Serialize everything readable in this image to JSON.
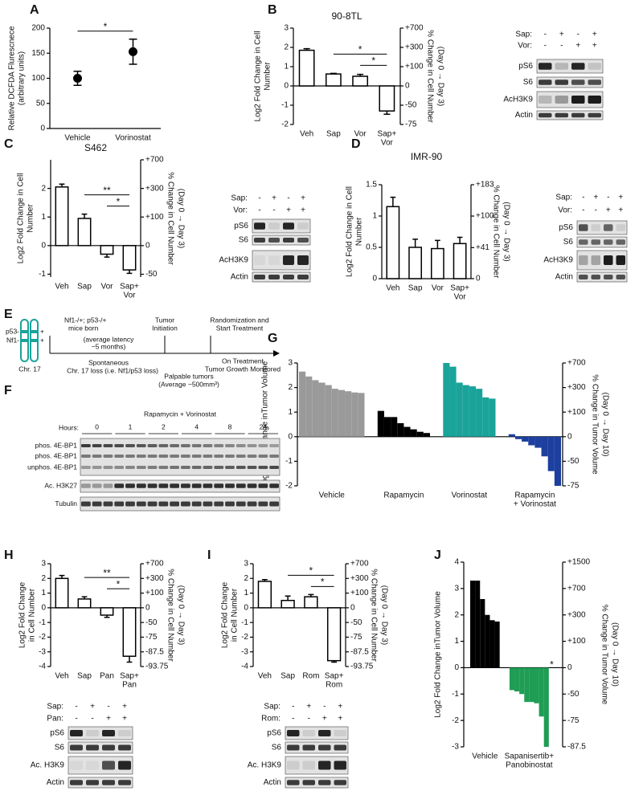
{
  "panel_labels": [
    "A",
    "B",
    "C",
    "D",
    "E",
    "F",
    "G",
    "H",
    "I",
    "J"
  ],
  "chart_data": [
    {
      "type": "point",
      "ylabel": [
        "Relative DCFDA Flurescnece",
        "(arbitrary units)"
      ],
      "categories": [
        [
          "Vehicle"
        ],
        [
          "Vorinostat"
        ]
      ],
      "values": [
        100,
        153
      ],
      "errors": [
        14,
        25
      ],
      "color": "#000000",
      "ylim": [
        0,
        200
      ],
      "yticks": [
        0,
        50,
        100,
        150,
        200
      ],
      "significance": [
        {
          "label": "*",
          "pair": [
            0,
            1
          ]
        }
      ]
    },
    {
      "type": "bar",
      "title": "90-8TL",
      "ylabel": [
        "Log2 Fold Change in Cell",
        "Number"
      ],
      "y2label": [
        "% Change in Cell Number",
        "(Day 0 → Day 3)"
      ],
      "categories": [
        [
          "Veh"
        ],
        [
          "Sap"
        ],
        [
          "Vor"
        ],
        [
          "Sap+",
          "Vor"
        ]
      ],
      "values": [
        1.85,
        0.62,
        0.5,
        -1.3
      ],
      "errors": [
        0.08,
        0.03,
        0.1,
        0.17
      ],
      "color": "#ffffff",
      "ylim": [
        -2,
        3
      ],
      "yticks": [
        -2,
        -1,
        0,
        1,
        2,
        3
      ],
      "y2lim": [
        -75,
        700
      ],
      "y2ticks": [
        {
          "value": 700,
          "label": "+700"
        },
        {
          "value": 300,
          "label": "+300"
        },
        {
          "value": 100,
          "label": "+100"
        },
        0,
        -50,
        -75
      ],
      "y2scale": "log2-fold",
      "significance": [
        {
          "label": "*",
          "pair": [
            1,
            3
          ]
        },
        {
          "label": "*",
          "pair": [
            2,
            3
          ]
        }
      ]
    },
    {
      "type": "bar",
      "title": "S462",
      "ylabel": [
        "Log2 Fold Change in Cell",
        "Number"
      ],
      "y2label": [
        "% Change in Cell Number",
        "(Day 0 → Day 3)"
      ],
      "categories": [
        [
          "Veh"
        ],
        [
          "Sap"
        ],
        [
          "Vor"
        ],
        [
          "Sap+",
          "Vor"
        ]
      ],
      "values": [
        2.05,
        0.95,
        -0.3,
        -0.85
      ],
      "errors": [
        0.1,
        0.15,
        0.1,
        0.12
      ],
      "color": "#ffffff",
      "ylim": [
        -1.1,
        3
      ],
      "yticks": [
        -1,
        0,
        1,
        2
      ],
      "y2lim": [
        -53.3,
        700
      ],
      "y2ticks": [
        {
          "value": 700,
          "label": "+700"
        },
        {
          "value": 300,
          "label": "+300"
        },
        {
          "value": 100,
          "label": "+100"
        },
        0,
        -50
      ],
      "y2scale": "log2-fold",
      "significance": [
        {
          "label": "**",
          "pair": [
            1,
            3
          ]
        },
        {
          "label": "*",
          "pair": [
            2,
            3
          ]
        }
      ]
    },
    {
      "type": "bar",
      "title": "IMR-90",
      "ylabel": [
        "Log2 Fold Change in Cell",
        "Number"
      ],
      "y2label": [
        "% Change in Cell Number",
        "(Day 0 → Day 3)"
      ],
      "categories": [
        [
          "Veh"
        ],
        [
          "Sap"
        ],
        [
          "Vor"
        ],
        [
          "Sap+",
          "Vor"
        ]
      ],
      "values": [
        1.15,
        0.5,
        0.48,
        0.56
      ],
      "errors": [
        0.15,
        0.13,
        0.13,
        0.1
      ],
      "color": "#ffffff",
      "ylim": [
        0,
        1.5
      ],
      "yticks": [
        0,
        0.5,
        1,
        1.5
      ],
      "y2lim": [
        0,
        183
      ],
      "y2ticks": [
        {
          "value": 183,
          "label": "+183"
        },
        {
          "value": 100,
          "label": "+100"
        },
        {
          "value": 41,
          "label": "+41"
        },
        0
      ],
      "y2scale": "log2-fold"
    },
    {
      "type": "bar",
      "ylabel": [
        "Log2 Fold Change inTumor Volume"
      ],
      "y2label": [
        "% Change in Tumor Volume",
        "(Day 0 → Day 10)"
      ],
      "series": [
        {
          "name": [
            "Vehicle"
          ],
          "color": "#9a9a9a",
          "values": [
            2.65,
            2.45,
            2.3,
            2.2,
            2.1,
            1.95,
            1.9,
            1.85,
            1.8,
            1.78
          ]
        },
        {
          "name": [
            "Rapamycin"
          ],
          "color": "#000000",
          "values": [
            1.05,
            0.8,
            0.8,
            0.55,
            0.4,
            0.3,
            0.2,
            0.15
          ]
        },
        {
          "name": [
            "Vorinostat"
          ],
          "color": "#1aa39a",
          "values": [
            3.0,
            2.85,
            2.2,
            2.1,
            2.05,
            1.95,
            1.6,
            1.55
          ]
        },
        {
          "name": [
            "Rapamycin",
            "+ Vorinostat"
          ],
          "color": "#1c3fa0",
          "values": [
            0.1,
            -0.1,
            -0.2,
            -0.35,
            -0.45,
            -0.8,
            -1.4,
            -2.0
          ]
        }
      ],
      "ylim": [
        -2,
        3
      ],
      "yticks": [
        -2,
        -1,
        0,
        1,
        2,
        3
      ],
      "y2lim": [
        -75,
        700
      ],
      "y2ticks": [
        {
          "value": 700,
          "label": "+700"
        },
        {
          "value": 300,
          "label": "+300"
        },
        {
          "value": 100,
          "label": "+100"
        },
        0,
        -50,
        -75
      ],
      "y2scale": "log2-fold"
    },
    {
      "type": "bar",
      "ylabel": [
        "Log2 Fold Change",
        "in Cell Number"
      ],
      "y2label": [
        "% Change in Cell Number",
        "(Day 0 → Day 3)"
      ],
      "categories": [
        [
          "Veh"
        ],
        [
          "Sap"
        ],
        [
          "Pan"
        ],
        [
          "Sap+",
          "Pan"
        ]
      ],
      "values": [
        2.0,
        0.6,
        -0.5,
        -3.3
      ],
      "errors": [
        0.2,
        0.15,
        0.15,
        0.4
      ],
      "color": "#ffffff",
      "ylim": [
        -4,
        3
      ],
      "yticks": [
        -4,
        -3,
        -2,
        -1,
        0,
        1,
        2,
        3
      ],
      "y2lim": [
        -93.75,
        700
      ],
      "y2ticks": [
        {
          "value": 700,
          "label": "+700"
        },
        {
          "value": 300,
          "label": "+300"
        },
        {
          "value": 100,
          "label": "+100"
        },
        0,
        -50,
        -75,
        -87.5,
        -93.75
      ],
      "y2scale": "log2-fold",
      "significance": [
        {
          "label": "**",
          "pair": [
            1,
            3
          ]
        },
        {
          "label": "*",
          "pair": [
            2,
            3
          ]
        }
      ]
    },
    {
      "type": "bar",
      "ylabel": [
        "Log2 Fold Change",
        "in Cell Number"
      ],
      "y2label": [
        "% Change in Cell Number",
        "(Day 0 → Day 3)"
      ],
      "categories": [
        [
          "Veh"
        ],
        [
          "Sap"
        ],
        [
          "Rom"
        ],
        [
          "Sap+",
          "Rom"
        ]
      ],
      "values": [
        1.8,
        0.5,
        0.75,
        -3.6
      ],
      "errors": [
        0.12,
        0.3,
        0.15,
        0.1
      ],
      "color": "#ffffff",
      "ylim": [
        -4,
        3
      ],
      "yticks": [
        -4,
        -3,
        -2,
        -1,
        0,
        1,
        2,
        3
      ],
      "y2lim": [
        -93.75,
        700
      ],
      "y2ticks": [
        {
          "value": 700,
          "label": "+700"
        },
        {
          "value": 300,
          "label": "+300"
        },
        {
          "value": 100,
          "label": "+100"
        },
        0,
        -50,
        -75,
        -87.5,
        -93.75
      ],
      "y2scale": "log2-fold",
      "significance": [
        {
          "label": "*",
          "pair": [
            1,
            3
          ]
        },
        {
          "label": "*",
          "pair": [
            2,
            3
          ]
        }
      ]
    },
    {
      "type": "bar",
      "ylabel": [
        "Log2 Fold Change inTumor Volume"
      ],
      "y2label": [
        "% Change in Tumor Volume",
        "(Day 0 → Day 10)"
      ],
      "series": [
        {
          "name": [
            "Vehicle"
          ],
          "color": "#000000",
          "values": [
            3.3,
            3.3,
            2.6,
            2.0,
            1.8,
            1.75
          ]
        },
        {
          "name": [
            "Sapanisertib+",
            "Panobinostat"
          ],
          "color": "#1f9d55",
          "values": [
            -0.85,
            -0.9,
            -1.0,
            -1.3,
            -1.3,
            -1.35,
            -1.85,
            -3.0
          ]
        }
      ],
      "note": {
        "text": "*",
        "color": "#e8352e"
      },
      "ylim": [
        -3,
        4
      ],
      "yticks": [
        -3,
        -2,
        -1,
        0,
        1,
        2,
        3,
        4
      ],
      "y2lim": [
        -87.5,
        1500
      ],
      "y2ticks": [
        {
          "value": 1500,
          "label": "+1500"
        },
        {
          "value": 700,
          "label": "+700"
        },
        {
          "value": 300,
          "label": "+300"
        },
        {
          "value": 100,
          "label": "+100"
        },
        0,
        -50,
        -75,
        -87.5
      ],
      "y2scale": "log2-fold"
    }
  ],
  "blots": [
    {
      "conditions": [
        {
          "label": "Sap:",
          "signs": [
            "-",
            "+",
            "-",
            "+"
          ]
        },
        {
          "label": "Vor:",
          "signs": [
            "-",
            "-",
            "+",
            "+"
          ]
        }
      ],
      "rows": [
        "pS6",
        "S6",
        "AcH3K9",
        "Actin"
      ]
    },
    {
      "conditions": [
        {
          "label": "Sap:",
          "signs": [
            "-",
            "+",
            "-",
            "+"
          ]
        },
        {
          "label": "Vor:",
          "signs": [
            "-",
            "-",
            "+",
            "+"
          ]
        }
      ],
      "rows": [
        "pS6",
        "S6",
        "AcH3K9",
        "Actin"
      ]
    },
    {
      "conditions": [
        {
          "label": "Sap:",
          "signs": [
            "-",
            "+",
            "-",
            "+"
          ]
        },
        {
          "label": "Vor:",
          "signs": [
            "-",
            "-",
            "+",
            "+"
          ]
        }
      ],
      "rows": [
        "pS6",
        "S6",
        "AcH3K9",
        "Actin"
      ]
    },
    {
      "conditions": [
        {
          "label": "Sap:",
          "signs": [
            "-",
            "+",
            "-",
            "+"
          ]
        },
        {
          "label": "Pan:",
          "signs": [
            "-",
            "-",
            "+",
            "+"
          ]
        }
      ],
      "rows": [
        "pS6",
        "S6",
        "Ac. H3K9",
        "Actin"
      ]
    },
    {
      "conditions": [
        {
          "label": "Sap:",
          "signs": [
            "-",
            "+",
            "-",
            "+"
          ]
        },
        {
          "label": "Rom:",
          "signs": [
            "-",
            "-",
            "+",
            "+"
          ]
        }
      ],
      "rows": [
        "pS6",
        "S6",
        "Ac. H3K9",
        "Actin"
      ]
    }
  ],
  "time_course_blot": {
    "title": "Rapamycin + Vorinostat",
    "hours_label": "Hours:",
    "hours": [
      0,
      1,
      2,
      4,
      8,
      24
    ],
    "rows": [
      "phos. 4E-BP1",
      "phos. 4E-BP1",
      "unphos. 4E-BP1",
      "Ac. H3K27",
      "Tubulin"
    ]
  },
  "timeline": {
    "left_labels": [
      "p53-",
      "Nf1-"
    ],
    "right_labels": [
      "+",
      "+"
    ],
    "chromosome": "Chr. 17",
    "born": [
      "Nf1-/+; p53-/+",
      "mice born"
    ],
    "latency": [
      "(average latency",
      "~5 months)"
    ],
    "initiation": [
      "Tumor",
      "Initiation"
    ],
    "randomization": [
      "Randomization and",
      "Start Treatment"
    ],
    "loss": [
      "Spontaneous",
      "Chr. 17 loss (i.e. Nf1/p53 loss)"
    ],
    "palpable": [
      "Palpable tumors",
      "(Average ~500mm³)"
    ],
    "treatment": [
      "On Treatment",
      "Tumor Growth Monitored"
    ]
  }
}
